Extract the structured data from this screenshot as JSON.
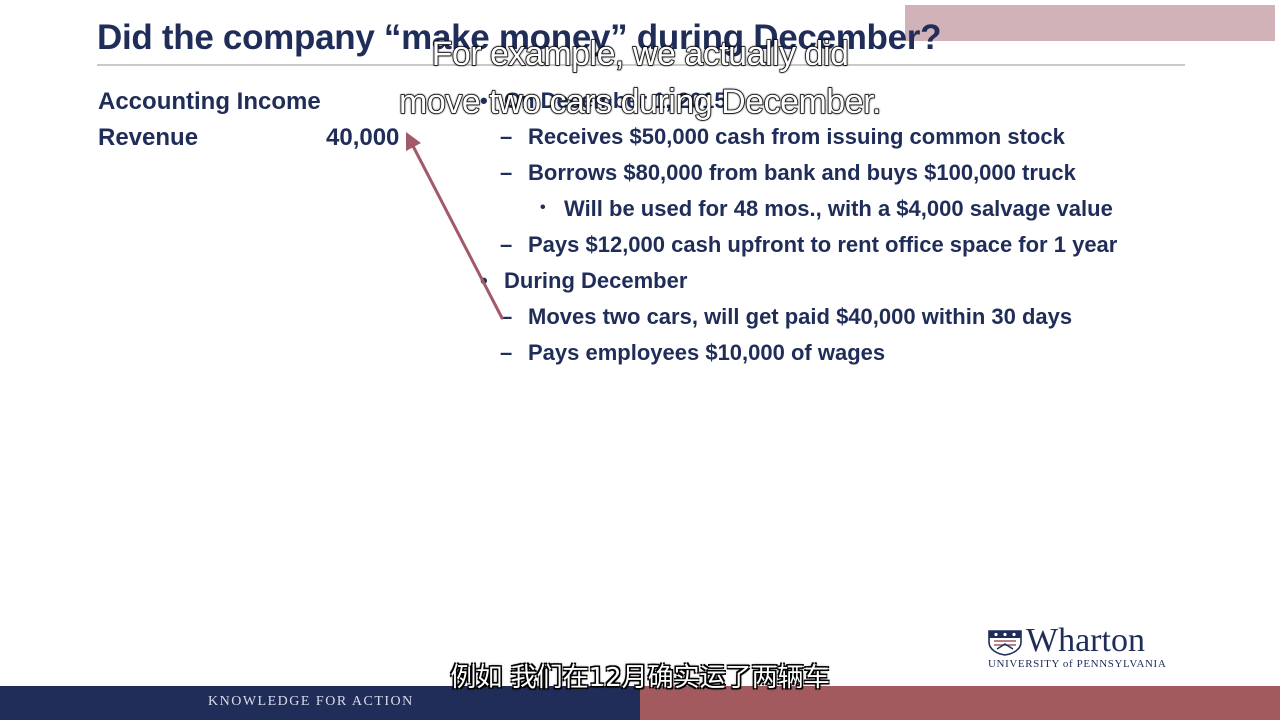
{
  "watermark": {
    "text": ""
  },
  "slide": {
    "title": "Did the company “make money” during December?",
    "left": {
      "heading": "Accounting Income",
      "revenue_label": "Revenue",
      "revenue_value": "40,000"
    },
    "bullets": [
      {
        "level": 1,
        "marker": "•",
        "text": "On December 1, 2015"
      },
      {
        "level": 2,
        "marker": "–",
        "text": "Receives $50,000 cash from issuing common stock"
      },
      {
        "level": 2,
        "marker": "–",
        "text": "Borrows $80,000 from bank and buys $100,000 truck"
      },
      {
        "level": 3,
        "marker": "•",
        "text": "Will be used for 48 mos., with a $4,000 salvage value"
      },
      {
        "level": 2,
        "marker": "–",
        "text": "Pays $12,000 cash upfront to rent office space for 1 year"
      },
      {
        "level": 1,
        "marker": "•",
        "text": "During December"
      },
      {
        "level": 2,
        "marker": "–",
        "text": "Moves two cars, will get paid $40,000 within 30 days"
      },
      {
        "level": 2,
        "marker": "–",
        "text": "Pays employees $10,000 of wages"
      }
    ],
    "arrow_color": "#a25a6a"
  },
  "subtitles": {
    "english_line1": "For example, we actually did",
    "english_line2": "move two cars during December.",
    "chinese": "例如 我们在12月确实运了两辆车"
  },
  "logo": {
    "name": "Wharton",
    "subtitle": "UNIVERSITY of PENNSYLVANIA",
    "icon": "penn-shield-icon"
  },
  "footer": {
    "tagline": "KNOWLEDGE FOR ACTION",
    "left_color": "#1f2d58",
    "right_color": "#a25a5e"
  }
}
